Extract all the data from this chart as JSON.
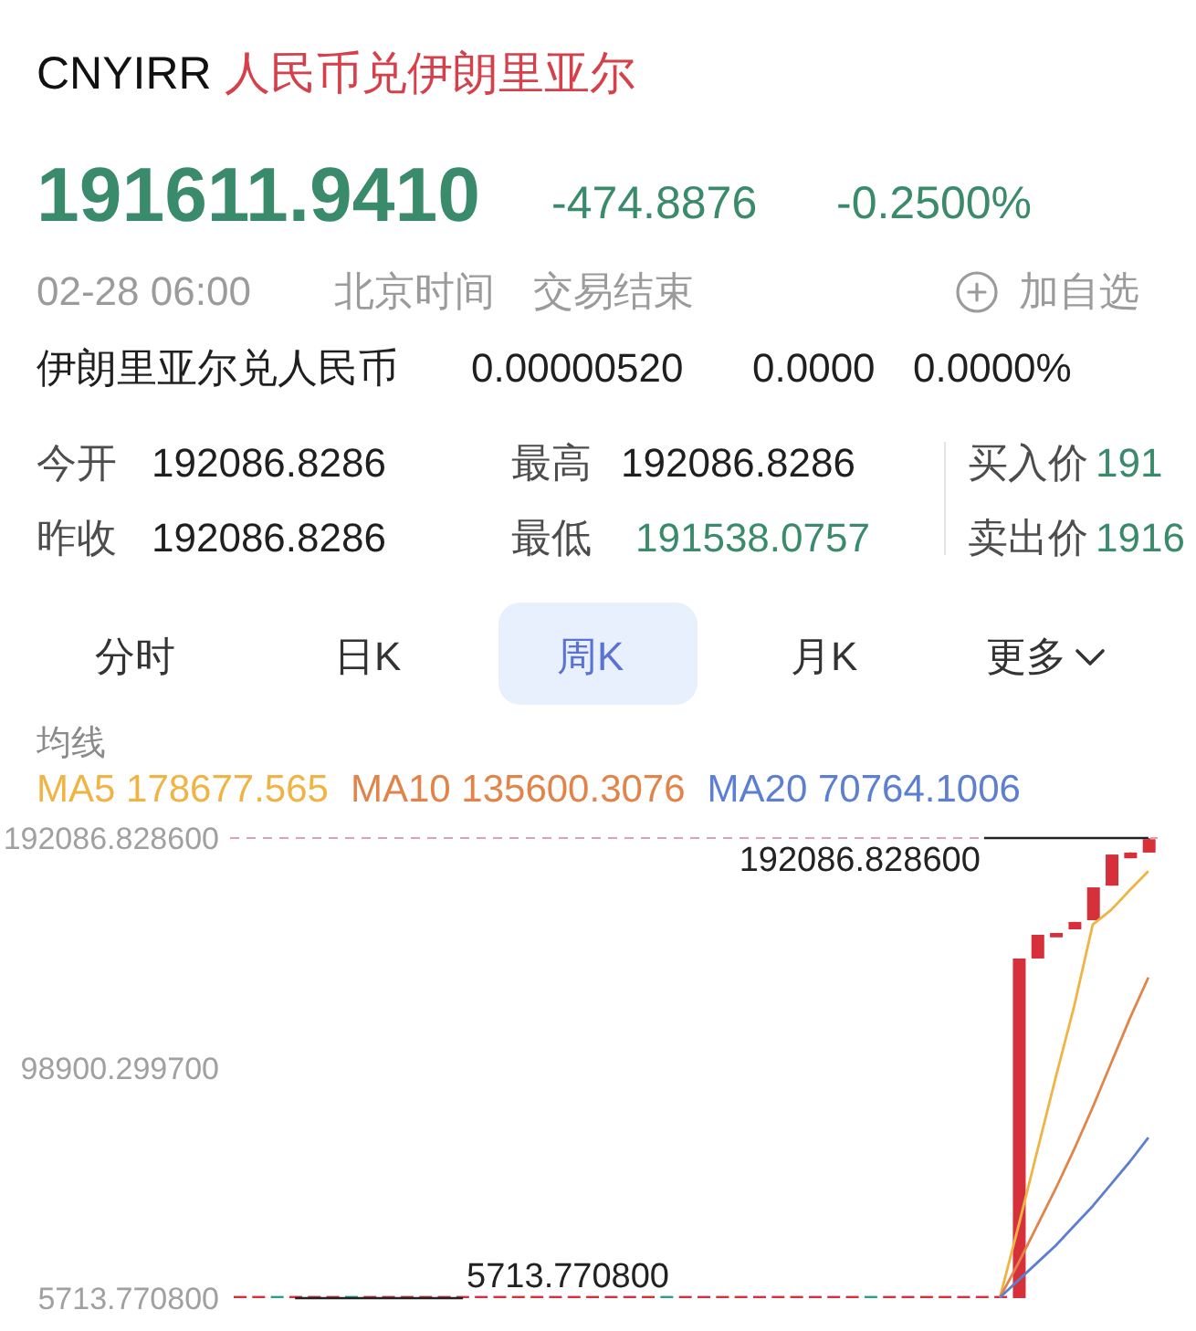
{
  "chart_data": {
    "type": "candlestick",
    "title": "CNYIRR 人民币兑伊朗里亚尔",
    "annotations": [
      "191611.9410",
      "-474.8876",
      "-0.2500%",
      "02-28 06:00",
      "北京时间",
      "交易结束",
      "加自选",
      "伊朗里亚尔兑人民币",
      "0.00000520",
      "0.0000",
      "0.0000%",
      "今开",
      "192086.8286",
      "最高",
      "192086.8286",
      "买入价",
      "191",
      "昨收",
      "192086.8286",
      "最低",
      "191538.0757",
      "卖出价",
      "1916",
      "分时",
      "日K",
      "周K",
      "月K",
      "更多",
      {
        "text": "192086.828600",
        "y": 192086.8286
      },
      {
        "text": "5713.770800",
        "y": 5713.7708
      }
    ],
    "categories": [
      null,
      null,
      null,
      null,
      null,
      null,
      null,
      null,
      null,
      null,
      null,
      null,
      null,
      null,
      null,
      null,
      null,
      null,
      null,
      null,
      null,
      null,
      null,
      null,
      null,
      null,
      null,
      null,
      null,
      null,
      null,
      null,
      null,
      null,
      null,
      null,
      null,
      null,
      null,
      null,
      null,
      null,
      null,
      null,
      null,
      null,
      null,
      null,
      null,
      null
    ],
    "ohlc": [
      [
        5714,
        5715,
        5714,
        5715
      ],
      [
        5714,
        5715,
        5714,
        5715
      ],
      [
        5715,
        5715,
        5714,
        5714
      ],
      [
        5714,
        5715,
        5713.7708,
        5715
      ],
      [
        5714,
        5715,
        5714,
        5715
      ],
      [
        5714,
        5715,
        5714,
        5715
      ],
      [
        5715,
        5715,
        5714,
        5714
      ],
      [
        5714,
        5715,
        5714,
        5715
      ],
      [
        5714,
        5715,
        5714,
        5715
      ],
      [
        5714,
        5715,
        5714,
        5715
      ],
      [
        5714,
        5715,
        5714,
        5715
      ],
      [
        5714,
        5715,
        5714,
        5715
      ],
      [
        5714,
        5715,
        5714,
        5715
      ],
      [
        5714,
        5715,
        5714,
        5715
      ],
      [
        5714,
        5715,
        5714,
        5715
      ],
      [
        5714,
        5715,
        5714,
        5715
      ],
      [
        5714,
        5715,
        5714,
        5715
      ],
      [
        5714,
        5715,
        5714,
        5715
      ],
      [
        5714,
        5715,
        5714,
        5715
      ],
      [
        5714,
        5715,
        5714,
        5715
      ],
      [
        5714,
        5715,
        5714,
        5715
      ],
      [
        5714,
        5715,
        5714,
        5715
      ],
      [
        5714,
        5715,
        5714,
        5715
      ],
      [
        5715,
        5715,
        5714,
        5714
      ],
      [
        5714,
        5715,
        5714,
        5715
      ],
      [
        5714,
        5715,
        5714,
        5715
      ],
      [
        5714,
        5715,
        5714,
        5715
      ],
      [
        5714,
        5715,
        5714,
        5715
      ],
      [
        5714,
        5715,
        5714,
        5715
      ],
      [
        5714,
        5715,
        5714,
        5715
      ],
      [
        5714,
        5715,
        5714,
        5715
      ],
      [
        5714,
        5715,
        5714,
        5715
      ],
      [
        5714,
        5715,
        5714,
        5715
      ],
      [
        5714,
        5715,
        5714,
        5715
      ],
      [
        5715,
        5715,
        5714,
        5714
      ],
      [
        5714,
        5715,
        5714,
        5715
      ],
      [
        5714,
        5715,
        5714,
        5715
      ],
      [
        5714,
        5715,
        5714,
        5715
      ],
      [
        5714,
        5715,
        5714,
        5715
      ],
      [
        5714,
        5715,
        5714,
        5715
      ],
      [
        5714,
        5715,
        5714,
        5715
      ],
      [
        5714,
        5715,
        5714,
        5715
      ],
      [
        5715,
        143300,
        5714,
        143300
      ],
      [
        143300,
        152900,
        143300,
        152900
      ],
      [
        152200,
        153500,
        152200,
        153300
      ],
      [
        155100,
        158100,
        155100,
        158100
      ],
      [
        158800,
        172100,
        158800,
        172100
      ],
      [
        172800,
        185400,
        172800,
        185400
      ],
      [
        183900,
        186300,
        183900,
        186200
      ],
      [
        186200,
        192086.8286,
        186200,
        191611.941
      ]
    ],
    "colors": [
      "#d6313a",
      "#d6313a",
      "#2a9d8f",
      "#d6313a",
      "#d6313a",
      "#d6313a",
      "#2a9d8f",
      "#d6313a",
      "#d6313a",
      "#d6313a",
      "#d6313a",
      "#d6313a",
      "#d6313a",
      "#d6313a",
      "#d6313a",
      "#d6313a",
      "#d6313a",
      "#d6313a",
      "#d6313a",
      "#d6313a",
      "#d6313a",
      "#d6313a",
      "#d6313a",
      "#2a9d8f",
      "#d6313a",
      "#d6313a",
      "#d6313a",
      "#d6313a",
      "#d6313a",
      "#d6313a",
      "#d6313a",
      "#d6313a",
      "#d6313a",
      "#d6313a",
      "#2a9d8f",
      "#d6313a",
      "#d6313a",
      "#d6313a",
      "#d6313a",
      "#d6313a",
      "#d6313a",
      "#d6313a",
      "#d6313a",
      "#d6313a",
      "#d6313a",
      "#d6313a",
      "#d6313a",
      "#d6313a",
      "#d6313a",
      "#d6313a"
    ],
    "series": [
      {
        "name": "MA5 178677.565",
        "type": "line",
        "color": "#f0b445",
        "values": [
          null,
          null,
          null,
          null,
          null,
          null,
          null,
          null,
          null,
          null,
          null,
          null,
          null,
          null,
          null,
          null,
          null,
          null,
          null,
          null,
          null,
          null,
          null,
          null,
          null,
          null,
          null,
          null,
          null,
          null,
          null,
          null,
          null,
          null,
          null,
          null,
          null,
          null,
          null,
          null,
          null,
          6000,
          35000,
          65000,
          95000,
          124000,
          157000,
          163000,
          171000,
          178677.565
        ]
      },
      {
        "name": "MA10 135600.3076",
        "type": "line",
        "color": "#e2844a",
        "values": [
          null,
          null,
          null,
          null,
          null,
          null,
          null,
          null,
          null,
          null,
          null,
          null,
          null,
          null,
          null,
          null,
          null,
          null,
          null,
          null,
          null,
          null,
          null,
          null,
          null,
          null,
          null,
          null,
          null,
          null,
          null,
          null,
          null,
          null,
          null,
          null,
          null,
          null,
          null,
          null,
          null,
          6000,
          20000,
          35000,
          50000,
          66000,
          83000,
          101000,
          119000,
          135600.3076
        ]
      },
      {
        "name": "MA20 70764.1006",
        "type": "line",
        "color": "#5d7fd1",
        "values": [
          null,
          null,
          null,
          null,
          null,
          null,
          null,
          null,
          null,
          null,
          null,
          null,
          null,
          null,
          null,
          null,
          null,
          null,
          null,
          null,
          null,
          null,
          null,
          null,
          null,
          null,
          null,
          null,
          null,
          null,
          null,
          null,
          null,
          null,
          null,
          null,
          null,
          null,
          null,
          null,
          null,
          6000,
          13000,
          20000,
          27000,
          35000,
          43000,
          52000,
          61000,
          70764.1006
        ]
      }
    ],
    "legend_title": "均线",
    "legend": "top left",
    "ylim": [
      5713.7708,
      192086.8286
    ],
    "yticks": [
      {
        "value": 5713.7708,
        "label": "5713.770800"
      },
      {
        "value": 98900.2997,
        "label": "98900.299700"
      },
      {
        "value": 192086.8286,
        "label": "192086.828600"
      }
    ],
    "ref_lines": [
      {
        "axis": "y",
        "value": 192086.8286,
        "color": "#dba3ad",
        "line_style": "dashed"
      }
    ]
  }
}
